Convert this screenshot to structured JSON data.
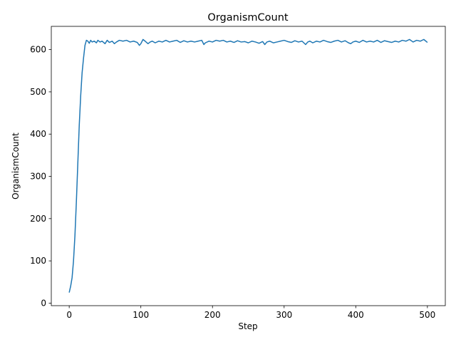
{
  "chart_data": {
    "type": "line",
    "title": "OrganismCount",
    "xlabel": "Step",
    "ylabel": "OrganismCount",
    "xlim": [
      -25,
      525
    ],
    "ylim": [
      -6,
      655
    ],
    "xticks": [
      0,
      100,
      200,
      300,
      400,
      500
    ],
    "yticks": [
      0,
      100,
      200,
      300,
      400,
      500,
      600
    ],
    "xtick_labels": [
      "0",
      "100",
      "200",
      "300",
      "400",
      "500"
    ],
    "ytick_labels": [
      "0",
      "100",
      "200",
      "300",
      "400",
      "500",
      "600"
    ],
    "grid": false,
    "legend": "none",
    "color": "#1f77b4",
    "series": [
      {
        "x": [
          0,
          2,
          4,
          6,
          8,
          10,
          12,
          14,
          16,
          18,
          20,
          22,
          24,
          26,
          28,
          30,
          32,
          35,
          38,
          40,
          43,
          46,
          50,
          53,
          56,
          60,
          63,
          66,
          70,
          75,
          80,
          85,
          90,
          95,
          98,
          100,
          103,
          106,
          110,
          113,
          116,
          120,
          125,
          130,
          135,
          140,
          145,
          150,
          155,
          160,
          165,
          170,
          175,
          180,
          185,
          188,
          190,
          195,
          200,
          205,
          210,
          215,
          220,
          225,
          230,
          235,
          240,
          245,
          250,
          255,
          260,
          265,
          270,
          273,
          276,
          280,
          285,
          290,
          295,
          300,
          305,
          310,
          315,
          320,
          325,
          330,
          333,
          336,
          340,
          345,
          350,
          355,
          360,
          365,
          370,
          375,
          380,
          385,
          390,
          393,
          396,
          400,
          405,
          410,
          415,
          420,
          425,
          430,
          435,
          440,
          445,
          450,
          455,
          460,
          465,
          470,
          475,
          480,
          485,
          490,
          495,
          500
        ],
        "y": [
          25,
          40,
          60,
          100,
          160,
          240,
          330,
          420,
          490,
          545,
          580,
          610,
          622,
          620,
          615,
          622,
          618,
          620,
          616,
          622,
          618,
          620,
          614,
          622,
          617,
          620,
          614,
          618,
          622,
          620,
          622,
          618,
          620,
          617,
          610,
          614,
          624,
          620,
          614,
          618,
          620,
          616,
          620,
          618,
          622,
          618,
          620,
          622,
          617,
          621,
          618,
          620,
          618,
          620,
          622,
          612,
          616,
          620,
          618,
          622,
          620,
          622,
          618,
          620,
          617,
          621,
          618,
          619,
          616,
          620,
          618,
          615,
          619,
          612,
          618,
          620,
          616,
          618,
          620,
          622,
          619,
          617,
          621,
          618,
          620,
          612,
          618,
          620,
          616,
          620,
          618,
          622,
          619,
          617,
          620,
          622,
          618,
          621,
          616,
          614,
          618,
          620,
          617,
          622,
          618,
          620,
          618,
          622,
          617,
          621,
          619,
          617,
          620,
          618,
          622,
          620,
          624,
          618,
          622,
          620,
          624,
          617
        ]
      }
    ]
  }
}
